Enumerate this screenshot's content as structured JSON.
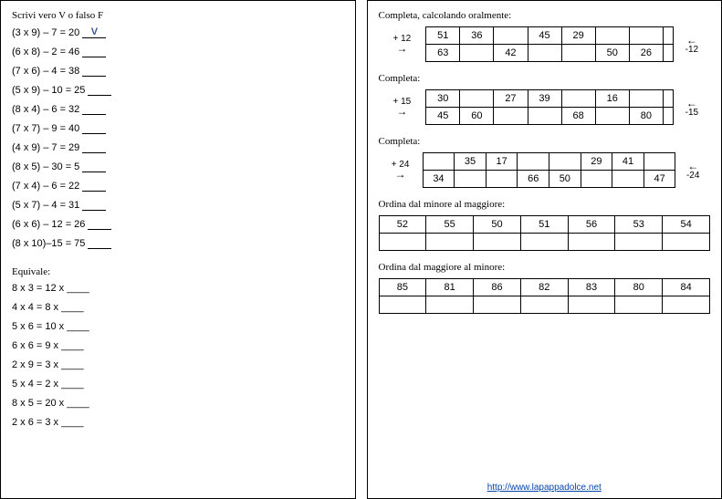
{
  "left": {
    "title_vf": "Scrivi vero V o falso F",
    "vf_items": [
      {
        "expr": "(3 x 9) – 7  =  20",
        "ans": "V"
      },
      {
        "expr": "(6 x 8) – 2  = 46",
        "ans": ""
      },
      {
        "expr": "(7 x 6) – 4  = 38",
        "ans": ""
      },
      {
        "expr": "(5 x 9) – 10 = 25",
        "ans": ""
      },
      {
        "expr": "(8 x 4) –  6  = 32",
        "ans": ""
      },
      {
        "expr": "(7 x 7) –  9  = 40",
        "ans": ""
      },
      {
        "expr": "(4 x 9) –  7  = 29",
        "ans": ""
      },
      {
        "expr": "(8 x 5) – 30 =  5",
        "ans": ""
      },
      {
        "expr": "(7 x 4) –   6 = 22",
        "ans": ""
      },
      {
        "expr": "(5 x 7) –   4 = 31",
        "ans": ""
      },
      {
        "expr": "(6 x 6) – 12 = 26",
        "ans": ""
      },
      {
        "expr": "(8 x 10)–15 = 75",
        "ans": ""
      }
    ],
    "title_eq": "Equivale:",
    "eq_items": [
      "8 x 3 = 12 x ____",
      "4 x 4 = 8 x ____",
      "5 x 6 = 10 x ____",
      "6 x 6 = 9 x ____",
      "2 x 9 = 3 x ____",
      "5 x 4 = 2 x ____",
      "8 x 5 = 20 x ____",
      "2 x 6 = 3 x ____"
    ]
  },
  "right": {
    "title1": "Completa, calcolando oralmente:",
    "t1": {
      "op_left": "+ 12",
      "op_right": "-12",
      "row_top": [
        "51",
        "36",
        "",
        "45",
        "29",
        "",
        "",
        ""
      ],
      "row_bottom": [
        "63",
        "",
        "42",
        "",
        "",
        "50",
        "26",
        ""
      ]
    },
    "title2": "Completa:",
    "t2": {
      "op_left": "+ 15",
      "op_right": "-15",
      "row_top": [
        "30",
        "",
        "27",
        "39",
        "",
        "16",
        "",
        ""
      ],
      "row_bottom": [
        "45",
        "60",
        "",
        "",
        "68",
        "",
        "80",
        ""
      ]
    },
    "title3": "Completa:",
    "t3": {
      "op_left": "+ 24",
      "op_right": "-24",
      "row_top": [
        "",
        "35",
        "17",
        "",
        "",
        "29",
        "41",
        ""
      ],
      "row_bottom": [
        "34",
        "",
        "",
        "66",
        "50",
        "",
        "",
        "47"
      ]
    },
    "title4": "Ordina dal minore al maggiore:",
    "t4": {
      "row_top": [
        "52",
        "55",
        "50",
        "51",
        "56",
        "53",
        "54"
      ],
      "row_bottom": [
        "",
        "",
        "",
        "",
        "",
        "",
        ""
      ]
    },
    "title5": "Ordina dal maggiore al minore:",
    "t5": {
      "row_top": [
        "85",
        "81",
        "86",
        "82",
        "83",
        "80",
        "84"
      ],
      "row_bottom": [
        "",
        "",
        "",
        "",
        "",
        "",
        ""
      ]
    },
    "footer": "http://www.lapappadolce.net"
  }
}
